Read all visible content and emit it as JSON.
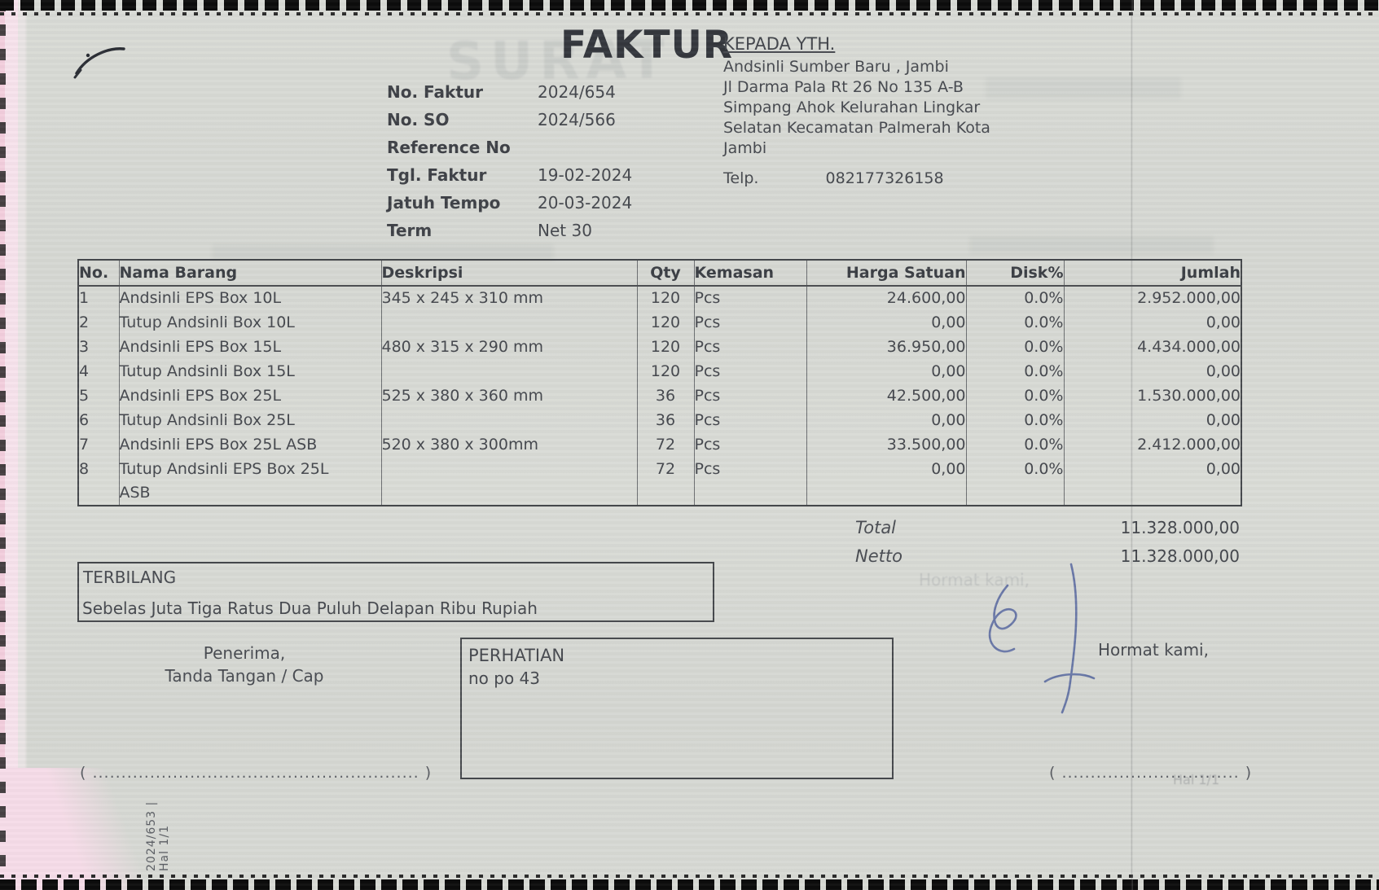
{
  "doc": {
    "title": "FAKTUR",
    "recipient": {
      "heading": "KEPADA YTH.",
      "lines": [
        "Andsinli Sumber Baru , Jambi",
        "Jl Darma Pala Rt 26 No 135 A-B",
        "Simpang Ahok Kelurahan Lingkar",
        "Selatan Kecamatan Palmerah Kota",
        "Jambi"
      ],
      "phone_label": "Telp.",
      "phone": "082177326158"
    },
    "meta": [
      {
        "label": "No. Faktur",
        "value": "2024/654"
      },
      {
        "label": "No. SO",
        "value": "2024/566"
      },
      {
        "label": "Reference No",
        "value": ""
      },
      {
        "label": "Tgl. Faktur",
        "value": "19-02-2024"
      },
      {
        "label": "Jatuh Tempo",
        "value": "20-03-2024"
      },
      {
        "label": "Term",
        "value": "Net 30"
      }
    ],
    "table": {
      "headers": [
        "No.",
        "Nama Barang",
        "Deskripsi",
        "Qty",
        "Kemasan",
        "Harga Satuan",
        "Disk%",
        "Jumlah"
      ],
      "rows": [
        {
          "no": "1",
          "nama": "Andsinli EPS Box 10L",
          "deskripsi": "345 x 245 x 310 mm",
          "qty": "120",
          "kemasan": "Pcs",
          "harga": "24.600,00",
          "disk": "0.0%",
          "jumlah": "2.952.000,00"
        },
        {
          "no": "2",
          "nama": "Tutup Andsinli Box 10L",
          "deskripsi": "",
          "qty": "120",
          "kemasan": "Pcs",
          "harga": "0,00",
          "disk": "0.0%",
          "jumlah": "0,00"
        },
        {
          "no": "3",
          "nama": "Andsinli EPS Box 15L",
          "deskripsi": "480 x 315 x 290 mm",
          "qty": "120",
          "kemasan": "Pcs",
          "harga": "36.950,00",
          "disk": "0.0%",
          "jumlah": "4.434.000,00"
        },
        {
          "no": "4",
          "nama": "Tutup Andsinli Box 15L",
          "deskripsi": "",
          "qty": "120",
          "kemasan": "Pcs",
          "harga": "0,00",
          "disk": "0.0%",
          "jumlah": "0,00"
        },
        {
          "no": "5",
          "nama": "Andsinli EPS Box 25L",
          "deskripsi": "525 x 380 x 360 mm",
          "qty": "36",
          "kemasan": "Pcs",
          "harga": "42.500,00",
          "disk": "0.0%",
          "jumlah": "1.530.000,00"
        },
        {
          "no": "6",
          "nama": "Tutup Andsinli Box 25L",
          "deskripsi": "",
          "qty": "36",
          "kemasan": "Pcs",
          "harga": "0,00",
          "disk": "0.0%",
          "jumlah": "0,00"
        },
        {
          "no": "7",
          "nama": "Andsinli EPS Box 25L ASB",
          "deskripsi": "520 x 380 x 300mm",
          "qty": "72",
          "kemasan": "Pcs",
          "harga": "33.500,00",
          "disk": "0.0%",
          "jumlah": "2.412.000,00"
        },
        {
          "no": "8",
          "nama": "Tutup Andsinli EPS Box 25L\nASB",
          "deskripsi": "",
          "qty": "72",
          "kemasan": "Pcs",
          "harga": "0,00",
          "disk": "0.0%",
          "jumlah": "0,00"
        }
      ]
    },
    "totals": [
      {
        "label": "Total",
        "value": "11.328.000,00"
      },
      {
        "label": "Netto",
        "value": "11.328.000,00"
      }
    ],
    "terbilang": {
      "label": "TERBILANG",
      "text": "Sebelas Juta Tiga Ratus Dua Puluh Delapan Ribu Rupiah"
    },
    "footer": {
      "penerima_line1": "Penerima,",
      "penerima_line2": "Tanda Tangan / Cap",
      "perhatian_title": "PERHATIAN",
      "perhatian_note": "no po 43",
      "hormat": "Hormat kami,",
      "left_sign_placeholder": "( ......................................................... )",
      "right_sign_placeholder": "( ............................... )"
    },
    "side_note": "2024/653 | Hal 1/1",
    "ghost_text": "SURAT",
    "page_ghost": "Hal 1/1"
  },
  "colors": {
    "paper": "#d7d9d4",
    "ink": "#45484e",
    "border": "#45484c",
    "pink_edge": "#f7e3ec",
    "pen_blue": "#5f6fa3",
    "edge_black": "#0c0c0c"
  }
}
